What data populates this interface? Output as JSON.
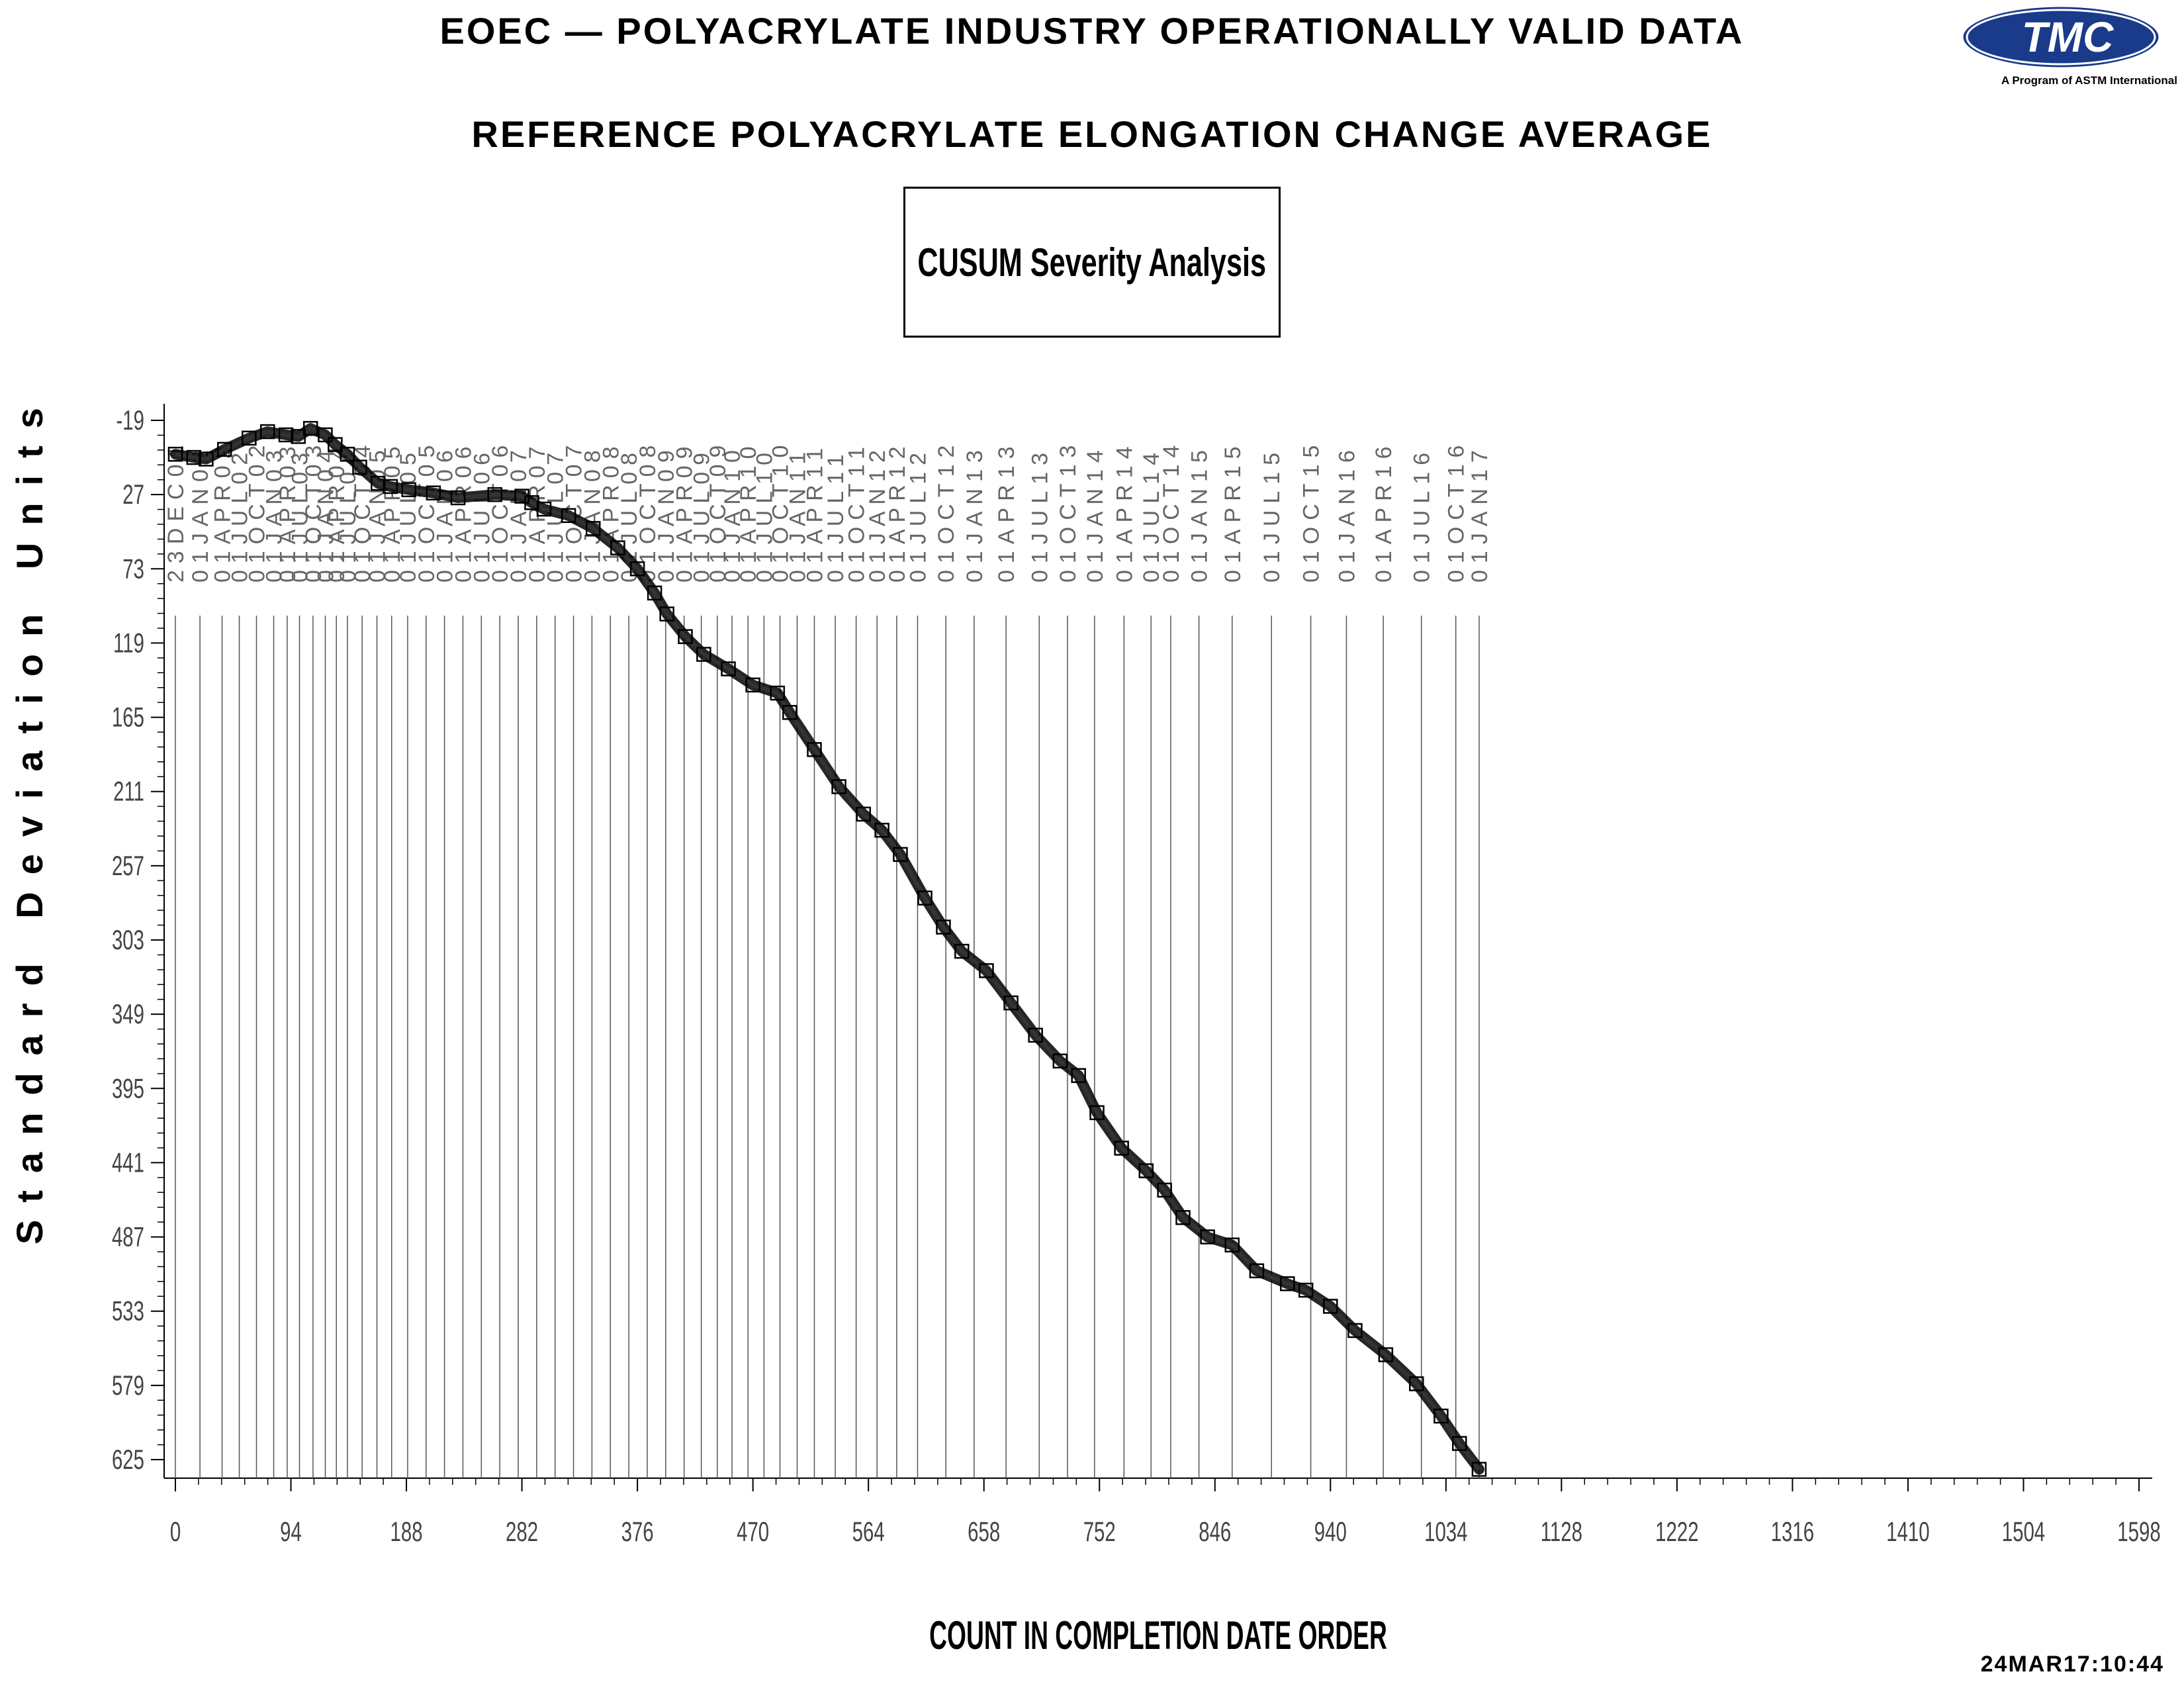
{
  "header": {
    "title": "EOEC — POLYACRYLATE INDUSTRY OPERATIONALLY VALID DATA",
    "subtitle": "REFERENCE POLYACRYLATE ELONGATION CHANGE AVERAGE",
    "box_label": "CUSUM Severity Analysis",
    "logo_text": "TMC",
    "logo_tagline": "A Program of ASTM International",
    "timestamp": "24MAR17:10:44"
  },
  "colors": {
    "ink": "#000000",
    "logo_blue": "#1a3a8a",
    "line_gray": "#555555"
  },
  "chart_data": {
    "type": "line",
    "title": "CUSUM Severity Analysis",
    "xlabel": "COUNT IN COMPLETION DATE ORDER",
    "ylabel": "Standard Deviation Units",
    "xlim": [
      0,
      1598
    ],
    "ylim": [
      -19,
      625
    ],
    "y_inverted": true,
    "grid": false,
    "marker": "open-square",
    "x_ticks": [
      0,
      94,
      188,
      282,
      376,
      470,
      564,
      658,
      752,
      846,
      940,
      1034,
      1128,
      1222,
      1316,
      1410,
      1504,
      1598
    ],
    "y_ticks": [
      -19,
      27,
      73,
      119,
      165,
      211,
      257,
      303,
      349,
      395,
      441,
      487,
      533,
      579,
      625
    ],
    "date_markers": [
      {
        "x": 0,
        "label": "23DEC01"
      },
      {
        "x": 20,
        "label": "01JAN02"
      },
      {
        "x": 38,
        "label": "01APR02"
      },
      {
        "x": 52,
        "label": "01JUL02"
      },
      {
        "x": 66,
        "label": "01OCT02"
      },
      {
        "x": 80,
        "label": "01JAN03"
      },
      {
        "x": 91,
        "label": "01APR03"
      },
      {
        "x": 101,
        "label": "01JUL03"
      },
      {
        "x": 112,
        "label": "01OCT03"
      },
      {
        "x": 122,
        "label": "01JAN04"
      },
      {
        "x": 131,
        "label": "01APR04"
      },
      {
        "x": 140,
        "label": "01JUL04"
      },
      {
        "x": 152,
        "label": "01OCT04"
      },
      {
        "x": 164,
        "label": "01JAN05"
      },
      {
        "x": 176,
        "label": "01APR05"
      },
      {
        "x": 189,
        "label": "01JUL05"
      },
      {
        "x": 204,
        "label": "01OCT05"
      },
      {
        "x": 219,
        "label": "01JAN06"
      },
      {
        "x": 234,
        "label": "01APR06"
      },
      {
        "x": 249,
        "label": "01JUL06"
      },
      {
        "x": 264,
        "label": "01OCT06"
      },
      {
        "x": 279,
        "label": "01JAN07"
      },
      {
        "x": 294,
        "label": "01APR07"
      },
      {
        "x": 309,
        "label": "01JUL07"
      },
      {
        "x": 324,
        "label": "01OCT07"
      },
      {
        "x": 339,
        "label": "01JAN08"
      },
      {
        "x": 354,
        "label": "01APR08"
      },
      {
        "x": 369,
        "label": "01JUL08"
      },
      {
        "x": 384,
        "label": "01OCT08"
      },
      {
        "x": 399,
        "label": "01JAN09"
      },
      {
        "x": 414,
        "label": "01APR09"
      },
      {
        "x": 428,
        "label": "01JUL09"
      },
      {
        "x": 441,
        "label": "01OCT09"
      },
      {
        "x": 453,
        "label": "01JAN10"
      },
      {
        "x": 466,
        "label": "01APR10"
      },
      {
        "x": 479,
        "label": "01JUL10"
      },
      {
        "x": 492,
        "label": "01OCT10"
      },
      {
        "x": 506,
        "label": "01JAN11"
      },
      {
        "x": 520,
        "label": "01APR11"
      },
      {
        "x": 537,
        "label": "01JUL11"
      },
      {
        "x": 554,
        "label": "01OCT11"
      },
      {
        "x": 571,
        "label": "01JAN12"
      },
      {
        "x": 587,
        "label": "01APR12"
      },
      {
        "x": 604,
        "label": "01JUL12"
      },
      {
        "x": 627,
        "label": "01OCT12"
      },
      {
        "x": 650,
        "label": "01JAN13"
      },
      {
        "x": 676,
        "label": "01APR13"
      },
      {
        "x": 703,
        "label": "01JUL13"
      },
      {
        "x": 726,
        "label": "01OCT13"
      },
      {
        "x": 748,
        "label": "01JAN14"
      },
      {
        "x": 772,
        "label": "01APR14"
      },
      {
        "x": 794,
        "label": "01JUL14"
      },
      {
        "x": 810,
        "label": "01OCT14"
      },
      {
        "x": 833,
        "label": "01JAN15"
      },
      {
        "x": 860,
        "label": "01APR15"
      },
      {
        "x": 892,
        "label": "01JUL15"
      },
      {
        "x": 924,
        "label": "01OCT15"
      },
      {
        "x": 953,
        "label": "01JAN16"
      },
      {
        "x": 983,
        "label": "01APR16"
      },
      {
        "x": 1014,
        "label": "01JUL16"
      },
      {
        "x": 1042,
        "label": "01OCT16"
      },
      {
        "x": 1061,
        "label": "01JAN17"
      }
    ],
    "series": [
      {
        "points": [
          [
            0,
            2
          ],
          [
            15,
            4
          ],
          [
            25,
            5
          ],
          [
            40,
            -1
          ],
          [
            60,
            -8
          ],
          [
            75,
            -12
          ],
          [
            90,
            -10
          ],
          [
            100,
            -9
          ],
          [
            110,
            -14
          ],
          [
            122,
            -10
          ],
          [
            130,
            -4
          ],
          [
            140,
            2
          ],
          [
            150,
            10
          ],
          [
            165,
            20
          ],
          [
            175,
            22
          ],
          [
            190,
            24
          ],
          [
            210,
            26
          ],
          [
            230,
            29
          ],
          [
            260,
            27
          ],
          [
            282,
            28
          ],
          [
            290,
            32
          ],
          [
            300,
            36
          ],
          [
            320,
            40
          ],
          [
            340,
            48
          ],
          [
            360,
            60
          ],
          [
            376,
            73
          ],
          [
            390,
            88
          ],
          [
            400,
            101
          ],
          [
            415,
            115
          ],
          [
            430,
            126
          ],
          [
            450,
            135
          ],
          [
            470,
            145
          ],
          [
            490,
            150
          ],
          [
            500,
            162
          ],
          [
            520,
            185
          ],
          [
            540,
            208
          ],
          [
            560,
            225
          ],
          [
            575,
            235
          ],
          [
            590,
            250
          ],
          [
            610,
            277
          ],
          [
            625,
            295
          ],
          [
            640,
            310
          ],
          [
            660,
            322
          ],
          [
            680,
            342
          ],
          [
            700,
            362
          ],
          [
            720,
            378
          ],
          [
            735,
            387
          ],
          [
            750,
            410
          ],
          [
            770,
            432
          ],
          [
            790,
            446
          ],
          [
            805,
            458
          ],
          [
            820,
            475
          ],
          [
            840,
            487
          ],
          [
            860,
            492
          ],
          [
            880,
            508
          ],
          [
            905,
            516
          ],
          [
            920,
            520
          ],
          [
            940,
            530
          ],
          [
            960,
            545
          ],
          [
            985,
            560
          ],
          [
            1010,
            578
          ],
          [
            1030,
            598
          ],
          [
            1045,
            615
          ],
          [
            1061,
            631
          ]
        ]
      }
    ]
  }
}
